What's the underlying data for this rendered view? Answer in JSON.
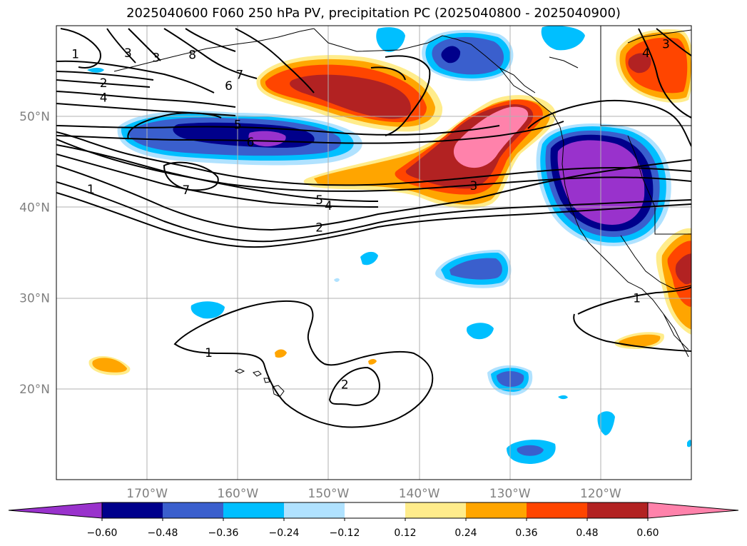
{
  "title": "2025040600 F060 250 hPa PV, precipitation PC (2025040800 - 2025040900)",
  "map": {
    "lon_range": [
      -180,
      -110
    ],
    "lat_range": [
      10,
      60
    ],
    "lon_ticks": [
      {
        "lon": -170,
        "label": "170°W"
      },
      {
        "lon": -160,
        "label": "160°W"
      },
      {
        "lon": -150,
        "label": "150°W"
      },
      {
        "lon": -140,
        "label": "140°W"
      },
      {
        "lon": -130,
        "label": "130°W"
      },
      {
        "lon": -120,
        "label": "120°W"
      }
    ],
    "lat_ticks": [
      {
        "lat": 50,
        "label": "50°N"
      },
      {
        "lat": 40,
        "label": "40°N"
      },
      {
        "lat": 30,
        "label": "30°N"
      },
      {
        "lat": 20,
        "label": "20°N"
      }
    ],
    "gridlines": true
  },
  "colorbar": {
    "colors": [
      "#9932CC",
      "#00008B",
      "#3A5FCD",
      "#00BFFF",
      "#B0E2FF",
      "#FFFFFF",
      "#FFEC8B",
      "#FFA500",
      "#FF4500",
      "#B22222",
      "#FF82AB"
    ],
    "tick_labels": [
      "−0.60",
      "−0.48",
      "−0.36",
      "−0.24",
      "−0.12",
      "0.12",
      "0.24",
      "0.36",
      "0.48",
      "0.60"
    ],
    "extend": "both"
  },
  "contour_labels": [
    {
      "text": "1",
      "lon": -177.9,
      "lat": 56.9
    },
    {
      "text": "3",
      "lon": -172.1,
      "lat": 57.0
    },
    {
      "text": "3",
      "lon": -169.0,
      "lat": 56.5
    },
    {
      "text": "8",
      "lon": -165.0,
      "lat": 56.8
    },
    {
      "text": "2",
      "lon": -174.8,
      "lat": 53.7
    },
    {
      "text": "4",
      "lon": -174.8,
      "lat": 52.1
    },
    {
      "text": "7",
      "lon": -159.8,
      "lat": 54.6
    },
    {
      "text": "6",
      "lon": -161.0,
      "lat": 53.4
    },
    {
      "text": "5",
      "lon": -160.0,
      "lat": 49.1
    },
    {
      "text": "6",
      "lon": -158.6,
      "lat": 47.2
    },
    {
      "text": "7",
      "lon": -165.7,
      "lat": 41.9
    },
    {
      "text": "1",
      "lon": -176.2,
      "lat": 42.0
    },
    {
      "text": "5",
      "lon": -151.0,
      "lat": 40.8
    },
    {
      "text": "4",
      "lon": -150.0,
      "lat": 40.2
    },
    {
      "text": "2",
      "lon": -151.0,
      "lat": 37.8
    },
    {
      "text": "3",
      "lon": -134.0,
      "lat": 42.4
    },
    {
      "text": "4",
      "lon": -115.0,
      "lat": 57.0
    },
    {
      "text": "3",
      "lon": -112.8,
      "lat": 58.0
    },
    {
      "text": "1",
      "lon": -116.0,
      "lat": 30.0
    },
    {
      "text": "1",
      "lon": -163.2,
      "lat": 24.0
    },
    {
      "text": "2",
      "lon": -148.2,
      "lat": 20.5
    }
  ]
}
